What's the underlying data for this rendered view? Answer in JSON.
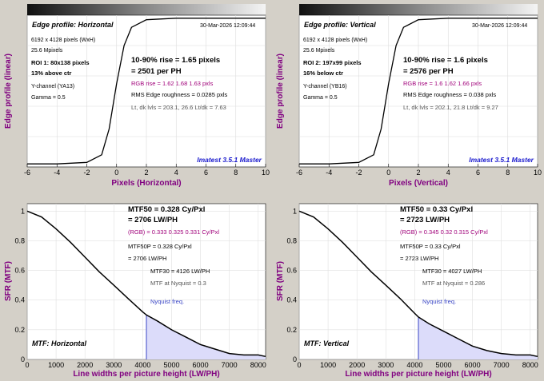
{
  "colors": {
    "plot_bg": "#ffffff",
    "window_bg": "#d4d0c8",
    "curve": "#000000",
    "rgb_points": "#c04060",
    "nyquist_fill": "#dcdcfa",
    "nyquist_line": "#3a46c6",
    "axis_label": "#800080",
    "brand": "#1a1acd"
  },
  "panels": {
    "edge_h": {
      "title": "Edge profile: Horizontal",
      "date": "30-Mar-2026 12:09:44",
      "dims": "6192 x 4128 pixels (WxH)",
      "mpix": "25.6 Mpixels",
      "roi": "ROI 1:  80x138 pixels",
      "pos": "13% above ctr",
      "channel": "Y-channel  (YA13)",
      "gamma": "Gamma = 0.5",
      "rise": "10-90% rise = 1.65 pixels",
      "perph": "= 2501 per PH",
      "rgbrise": "RGB rise = 1.62  1.68  1.63 pxls",
      "rms": "RMS Edge roughness = 0.0285 pxls",
      "lvls": "Lt, dk lvls = 203.1, 26.6    Lt/dk = 7.63",
      "brand": "Imatest 3.5.1 Master",
      "ylabel": "Edge profile (linear)",
      "xlabel": "Pixels (Horizontal)"
    },
    "edge_v": {
      "title": "Edge profile: Vertical",
      "date": "30-Mar-2026 12:09:44",
      "dims": "6192 x 4128 pixels (WxH)",
      "mpix": "25.6 Mpixels",
      "roi": "ROI 2:  197x99 pixels",
      "pos": "16% below ctr",
      "channel": "Y-channel  (YB16)",
      "gamma": "Gamma = 0.5",
      "rise": "10-90% rise = 1.6 pixels",
      "perph": "= 2576 per PH",
      "rgbrise": "RGB rise = 1.6  1.62  1.66 pxls",
      "rms": "RMS Edge roughness = 0.038 pxls",
      "lvls": "Lt, dk lvls = 202.1, 21.8    Lt/dk = 9.27",
      "brand": "Imatest 3.5.1 Master",
      "ylabel": "Edge profile (linear)",
      "xlabel": "Pixels (Vertical)"
    },
    "mtf_h": {
      "ylabel": "SFR (MTF)",
      "xlabel": "Line widths per picture height (LW/PH)",
      "mtf50": "MTF50 = 0.328 Cy/Pxl",
      "lwph": "= 2706 LW/PH",
      "rgb": "(RGB) = 0.333  0.325  0.331 Cy/Pxl",
      "mtf50p": "MTF50P = 0.328 Cy/Pxl",
      "lwph2": "= 2706 LW/PH",
      "mtf30": "MTF30 = 4126 LW/PH",
      "nyq_mtf": "MTF at Nyquist = 0.3",
      "nyq_label": "Nyquist freq.",
      "title": "MTF: Horizontal"
    },
    "mtf_v": {
      "ylabel": "SFR (MTF)",
      "xlabel": "Line widths per picture height (LW/PH)",
      "mtf50": "MTF50 = 0.33 Cy/Pxl",
      "lwph": "= 2723 LW/PH",
      "rgb": "(RGB) = 0.345  0.32  0.315 Cy/Pxl",
      "mtf50p": "MTF50P = 0.33 Cy/Pxl",
      "lwph2": "= 2723 LW/PH",
      "mtf30": "MTF30 = 4027 LW/PH",
      "nyq_mtf": "MTF at Nyquist = 0.286",
      "nyq_label": "Nyquist freq.",
      "title": "MTF: Vertical"
    }
  },
  "chart_data": [
    {
      "type": "line",
      "x": [
        -6,
        -4,
        -2,
        -1,
        -0.5,
        0,
        0.5,
        1,
        2,
        4,
        6,
        8,
        10
      ],
      "series": [
        {
          "values": [
            0.02,
            0.02,
            0.03,
            0.08,
            0.25,
            0.55,
            0.8,
            0.92,
            0.97,
            0.98,
            0.98,
            0.98,
            0.98
          ]
        }
      ],
      "xlim": [
        -6,
        10
      ],
      "x_ticks": [
        -6,
        -4,
        -2,
        0,
        2,
        4,
        6,
        8,
        10
      ]
    },
    {
      "type": "line",
      "x": [
        -6,
        -4,
        -2,
        -1,
        -0.5,
        0,
        0.5,
        1,
        2,
        4,
        6,
        8,
        10
      ],
      "series": [
        {
          "values": [
            0.02,
            0.02,
            0.03,
            0.08,
            0.25,
            0.55,
            0.8,
            0.92,
            0.97,
            0.98,
            0.98,
            0.98,
            0.98
          ]
        }
      ],
      "xlim": [
        -6,
        10
      ],
      "x_ticks": [
        -6,
        -4,
        -2,
        0,
        2,
        4,
        6,
        8,
        10
      ]
    },
    {
      "type": "line",
      "x": [
        0,
        500,
        1000,
        1500,
        2000,
        2500,
        3000,
        3500,
        4000,
        4128,
        4500,
        5000,
        5500,
        6000,
        6500,
        7000,
        7500,
        8000,
        8256
      ],
      "series": [
        {
          "values": [
            1.0,
            0.96,
            0.88,
            0.79,
            0.69,
            0.59,
            0.5,
            0.41,
            0.32,
            0.3,
            0.26,
            0.2,
            0.15,
            0.1,
            0.07,
            0.04,
            0.03,
            0.03,
            0.02
          ]
        }
      ],
      "xlim": [
        0,
        8256
      ],
      "ylim": [
        0,
        1.05
      ],
      "x_ticks": [
        0,
        1000,
        2000,
        3000,
        4000,
        5000,
        6000,
        7000,
        8000
      ],
      "nyquist": 4128
    },
    {
      "type": "line",
      "x": [
        0,
        500,
        1000,
        1500,
        2000,
        2500,
        3000,
        3500,
        4000,
        4128,
        4500,
        5000,
        5500,
        6000,
        6500,
        7000,
        7500,
        8000,
        8256
      ],
      "series": [
        {
          "values": [
            1.0,
            0.96,
            0.88,
            0.79,
            0.69,
            0.59,
            0.5,
            0.41,
            0.31,
            0.286,
            0.24,
            0.19,
            0.14,
            0.09,
            0.06,
            0.04,
            0.03,
            0.03,
            0.02
          ]
        }
      ],
      "xlim": [
        0,
        8256
      ],
      "ylim": [
        0,
        1.05
      ],
      "x_ticks": [
        0,
        1000,
        2000,
        3000,
        4000,
        5000,
        6000,
        7000,
        8000
      ],
      "nyquist": 4128
    }
  ]
}
